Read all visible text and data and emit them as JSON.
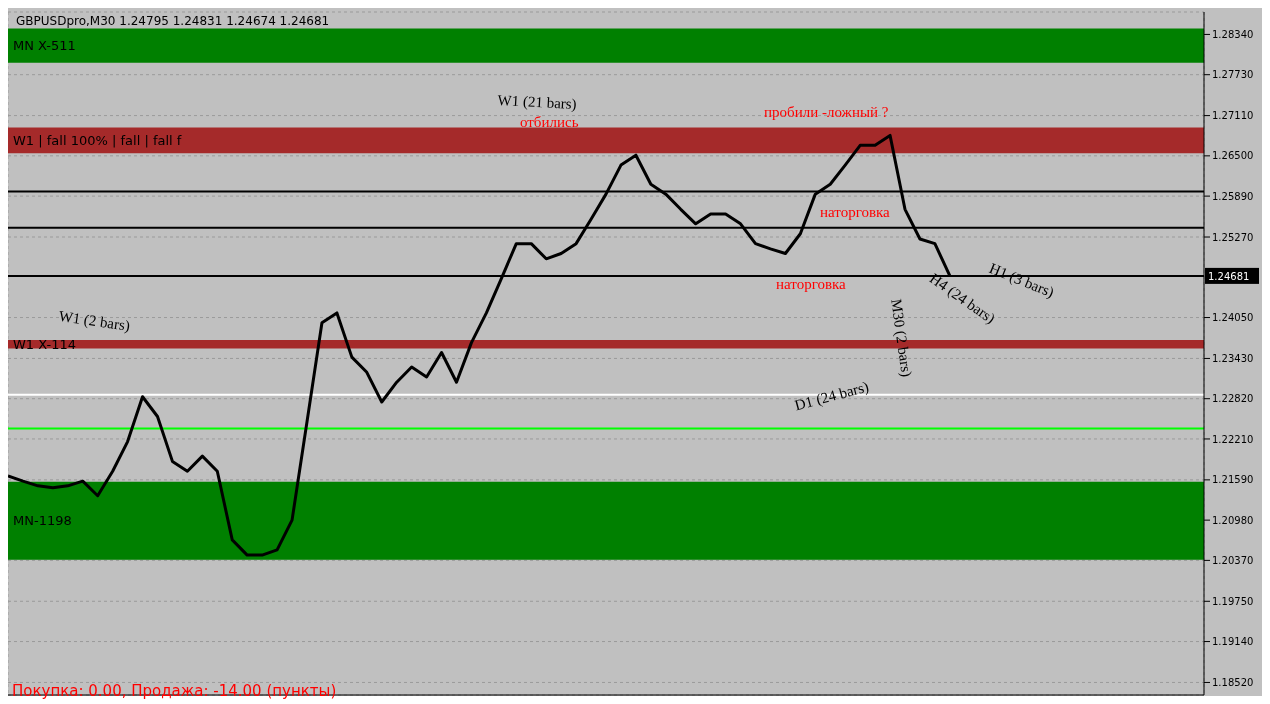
{
  "chart_data": {
    "type": "line",
    "title": "GBPUSDpro,M30  1.24795 1.24831 1.24674 1.24681",
    "categories": [
      null,
      null,
      null,
      null,
      null,
      null,
      null,
      null,
      null,
      null,
      null,
      null,
      null,
      null,
      null,
      null,
      null,
      null,
      null,
      null,
      null,
      null,
      null,
      null,
      null,
      null,
      null,
      null,
      null,
      null,
      null,
      null,
      null,
      null,
      null,
      null,
      null,
      null,
      null,
      null,
      null,
      null,
      null,
      null,
      null,
      null,
      null,
      null,
      null,
      null,
      null,
      null,
      null,
      null,
      null,
      null,
      null,
      null,
      null,
      null,
      null,
      null,
      null,
      null,
      null,
      null,
      null,
      null,
      null,
      null,
      null,
      null,
      null,
      null,
      null,
      null,
      null,
      null,
      null,
      null,
      null
    ],
    "series": [
      {
        "color": "#000000",
        "values": [
          1.2165,
          1.2157,
          1.215,
          1.2147,
          1.215,
          1.2157,
          1.2135,
          1.2172,
          1.2217,
          1.2285,
          1.2255,
          1.2187,
          1.2172,
          1.2195,
          1.2172,
          1.2068,
          1.2045,
          1.2045,
          1.2053,
          1.2098,
          1.2247,
          1.2397,
          1.2412,
          1.2345,
          1.2322,
          1.2277,
          1.2307,
          1.233,
          1.2315,
          1.2352,
          1.2307,
          1.2367,
          1.2412,
          1.2464,
          1.2517,
          1.2517,
          1.2494,
          1.2502,
          1.2517,
          1.2554,
          1.2592,
          1.2636,
          1.2651,
          1.2607,
          1.2592,
          1.2569,
          1.2547,
          1.2562,
          1.2562,
          1.2547,
          1.2517,
          1.2509,
          1.2502,
          1.2532,
          1.2592,
          1.2607,
          1.2636,
          1.2666,
          1.2666,
          1.2681,
          1.2569,
          1.2524,
          1.2517,
          1.2468,
          null,
          null,
          null,
          null,
          null,
          null,
          null,
          null,
          null,
          null,
          null,
          null,
          null,
          null,
          null,
          null,
          null
        ]
      }
    ],
    "ylim": [
      1.1833,
      1.2868
    ],
    "yticks": [
      {
        "value": 1.2834,
        "label": "1.28340"
      },
      {
        "value": 1.2773,
        "label": "1.27730"
      },
      {
        "value": 1.2711,
        "label": "1.27110"
      },
      {
        "value": 1.265,
        "label": "1.26500"
      },
      {
        "value": 1.2589,
        "label": "1.25890"
      },
      {
        "value": 1.2527,
        "label": "1.25270"
      },
      {
        "value": 1.2405,
        "label": "1.24050"
      },
      {
        "value": 1.2343,
        "label": "1.23430"
      },
      {
        "value": 1.2282,
        "label": "1.22820"
      },
      {
        "value": 1.2221,
        "label": "1.22210"
      },
      {
        "value": 1.2159,
        "label": "1.21590"
      },
      {
        "value": 1.2098,
        "label": "1.20980"
      },
      {
        "value": 1.2037,
        "label": "1.20370"
      },
      {
        "value": 1.1975,
        "label": "1.19750"
      },
      {
        "value": 1.1914,
        "label": "1.19140"
      },
      {
        "value": 1.1852,
        "label": "1.18520"
      }
    ],
    "tick_labels": "y",
    "grid": true,
    "marker": "none",
    "line_style": "solid",
    "ref_lines": [
      {
        "axis": "y",
        "value": 1.24681,
        "label": "1.24681",
        "color": "#000000"
      },
      {
        "axis": "y",
        "value": 1.2596,
        "label": null,
        "color": "#000000"
      },
      {
        "axis": "y",
        "value": 1.2541,
        "label": null,
        "color": "#000000"
      },
      {
        "axis": "y",
        "value": 1.2288,
        "label": null,
        "color": "#ffffff"
      },
      {
        "axis": "y",
        "value": 1.2237,
        "label": null,
        "color": "#00ff00"
      }
    ],
    "bands": [
      {
        "axis": "y",
        "from": 1.2791,
        "to": 1.2843,
        "label": "MN X-511",
        "color": "#008000"
      },
      {
        "axis": "y",
        "from": 1.2038,
        "to": 1.2156,
        "label": "MN-1198",
        "color": "#008000"
      },
      {
        "axis": "y",
        "from": 1.2654,
        "to": 1.2693,
        "label": "W1 | fall 100% | fall | fall f",
        "color": "#a52a2a"
      },
      {
        "axis": "y",
        "from": 1.2358,
        "to": 1.2371,
        "label": "W1 X-114",
        "color": "#a52a2a"
      }
    ],
    "annotations": [
      "W1 (21 bars)",
      "отбились",
      "пробили -ложный ?",
      "наторговка",
      "наторговка",
      "H1 (3 bars)",
      "H4 (24 bars)",
      "M30 (2 bars)",
      "D1 (24 bars)",
      "W1 (2 bars)",
      "Покупка: 0.00, Продажа: -14.00 (пункты)"
    ]
  }
}
